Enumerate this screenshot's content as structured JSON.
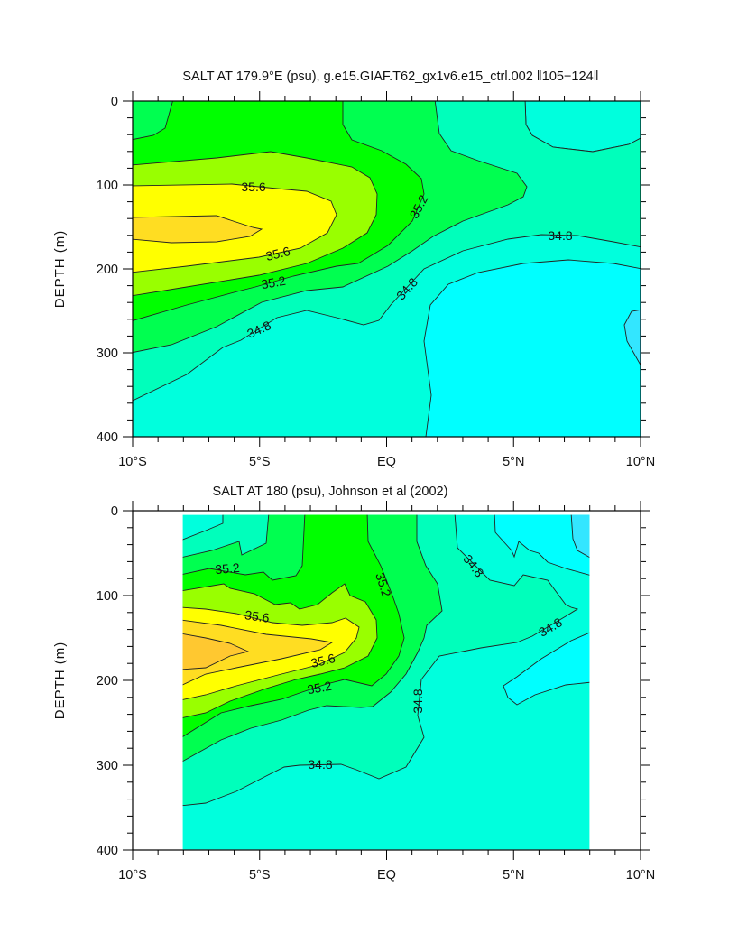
{
  "colors": {
    "lt34_4": "#33e6ff",
    "b34_4": "#00ffff",
    "b34_6": "#00ffdd",
    "b34_8": "#00ffbb",
    "b35_0": "#00ff50",
    "b35_2": "#00ff00",
    "b35_4": "#99ff00",
    "b35_6": "#ffff00",
    "b35_8": "#ffdd22",
    "b36_0": "#ffc830"
  },
  "chart_data": [
    {
      "type": "contour",
      "title": "SALT AT 179.9°E (psu), g.e15.GIAF.T62_gx1v6.e15_ctrl.002 ‖105−124‖",
      "xlabel": "",
      "ylabel": "DEPTH (m)",
      "xlim": [
        -10,
        10
      ],
      "ylim": [
        400,
        0
      ],
      "xticks": [
        "10°S",
        "5°S",
        "EQ",
        "5°N",
        "10°N"
      ],
      "yticks": [
        "0",
        "100",
        "200",
        "300",
        "400"
      ],
      "contour_interval": 0.2,
      "contour_labels": [
        "35.6",
        "35.6",
        "35.2",
        "34.8",
        "35.2",
        "34.8",
        "34.8"
      ],
      "max_region": {
        "lat": -7,
        "depth": 150,
        "value": 35.8
      }
    },
    {
      "type": "contour",
      "title": "SALT AT 180 (psu), Johnson et al (2002)",
      "xlabel": "",
      "ylabel": "DEPTH (m)",
      "xlim": [
        -10,
        10
      ],
      "ylim": [
        400,
        0
      ],
      "data_xrange": [
        -8,
        8
      ],
      "xticks": [
        "10°S",
        "5°S",
        "EQ",
        "5°N",
        "10°N"
      ],
      "yticks": [
        "0",
        "100",
        "200",
        "300",
        "400"
      ],
      "contour_interval": 0.2,
      "contour_labels": [
        "35.2",
        "35.6",
        "35.6",
        "35.2",
        "34.8",
        "35.2",
        "34.8",
        "34.8",
        "34.8"
      ],
      "max_region": {
        "lat": -7,
        "depth": 160,
        "value": 36.0
      }
    }
  ]
}
